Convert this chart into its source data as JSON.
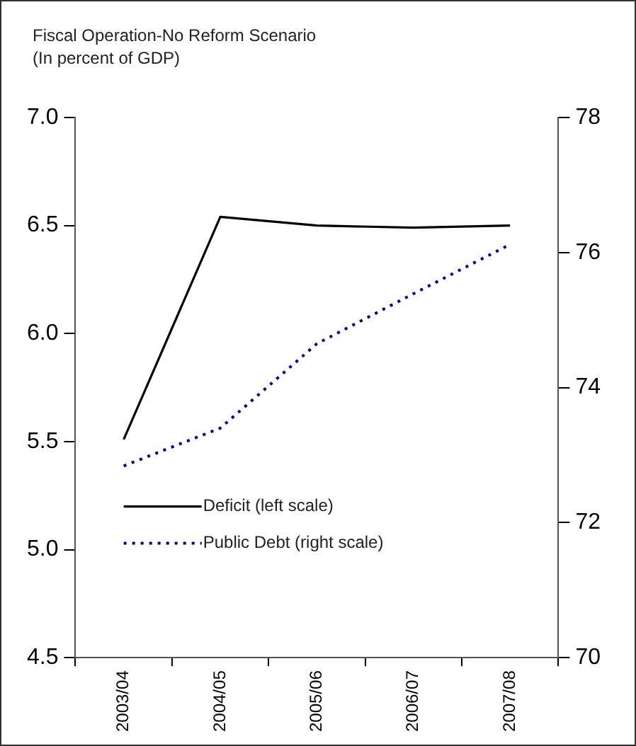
{
  "chart_data": {
    "type": "line",
    "title": "Fiscal Operation-No Reform Scenario",
    "subtitle": "(In percent of GDP)",
    "categories": [
      "2003/04",
      "2004/05",
      "2005/06",
      "2006/07",
      "2007/08"
    ],
    "series": [
      {
        "name": "Deficit (left scale)",
        "color": "#000000",
        "line_style": "solid",
        "values": [
          5.51,
          6.54,
          6.5,
          6.49,
          6.5
        ]
      },
      {
        "name": "Public Debt (right scale)",
        "color": "#000080",
        "line_style": "dotted",
        "axis": "y2",
        "values": [
          72.84,
          73.4,
          74.65,
          75.39,
          76.12
        ]
      }
    ],
    "ylim": [
      4.5,
      7.0
    ],
    "yticks": [
      {
        "value": 4.5,
        "label": "4.5"
      },
      {
        "value": 5,
        "label": "5.0"
      },
      {
        "value": 5.5,
        "label": "5.5"
      },
      {
        "value": 6,
        "label": "6.0"
      },
      {
        "value": 6.5,
        "label": "6.5"
      },
      {
        "value": 7,
        "label": "7.0"
      }
    ],
    "y2lim": [
      70,
      78
    ],
    "y2ticks": [
      70,
      72,
      74,
      76,
      78
    ],
    "grid": false,
    "legend": "left",
    "marker": "none"
  }
}
